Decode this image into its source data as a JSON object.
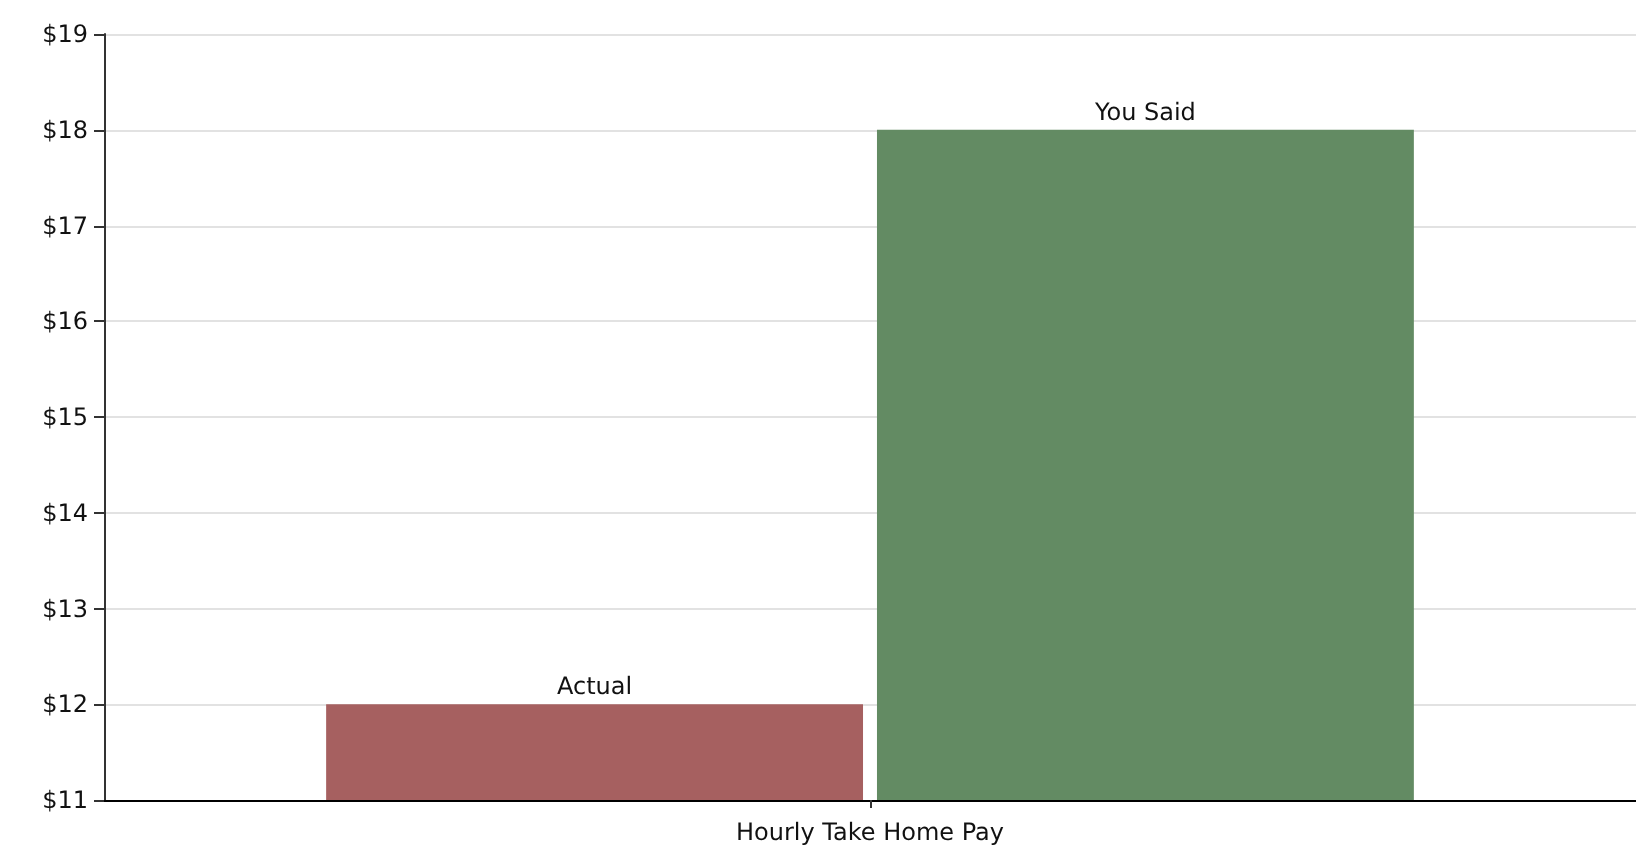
{
  "chart_data": {
    "type": "bar",
    "categories": [
      "Hourly Take Home Pay"
    ],
    "series": [
      {
        "name": "Actual",
        "color": "#a66060",
        "values": [
          12
        ]
      },
      {
        "name": "You Said",
        "color": "#638b63",
        "values": [
          18
        ]
      }
    ],
    "ylim": [
      11,
      19
    ],
    "yticks": [
      {
        "value": 11,
        "label": "$11"
      },
      {
        "value": 12,
        "label": "$12"
      },
      {
        "value": 13,
        "label": "$13"
      },
      {
        "value": 14,
        "label": "$14"
      },
      {
        "value": 15,
        "label": "$15"
      },
      {
        "value": 16,
        "label": "$16"
      },
      {
        "value": 17,
        "label": "$17"
      },
      {
        "value": 18,
        "label": "$18"
      },
      {
        "value": 19,
        "label": "$19"
      }
    ],
    "grid": "y",
    "legend": false
  }
}
